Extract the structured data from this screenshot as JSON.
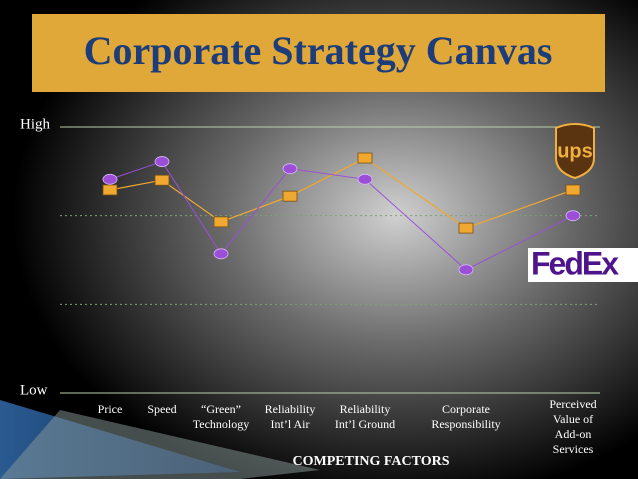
{
  "chart_data": {
    "type": "line",
    "title": "Corporate Strategy Canvas",
    "x_label": "COMPETING FACTORS",
    "categories": [
      "Price",
      "Speed",
      "“Green”\nTechnology",
      "Reliability\nInt’l Air",
      "Reliability\nInt’l Ground",
      "Corporate\nResponsibility",
      "Perceived\nValue of\nAdd-on\nServices"
    ],
    "series": [
      {
        "name": "ups",
        "color": "#f0a830",
        "values": [
          2.29,
          2.4,
          1.93,
          2.22,
          2.65,
          1.86,
          2.29
        ]
      },
      {
        "name": "FedEx",
        "color": "#9b4fd6",
        "values": [
          2.41,
          2.61,
          1.57,
          2.53,
          2.41,
          1.39,
          2.0
        ]
      }
    ],
    "ylim": [
      0,
      3
    ],
    "yticks": [
      {
        "value": 0,
        "label": "Low"
      },
      {
        "value": 3,
        "label": "High"
      }
    ],
    "grid_lines": [
      1,
      2
    ]
  }
}
